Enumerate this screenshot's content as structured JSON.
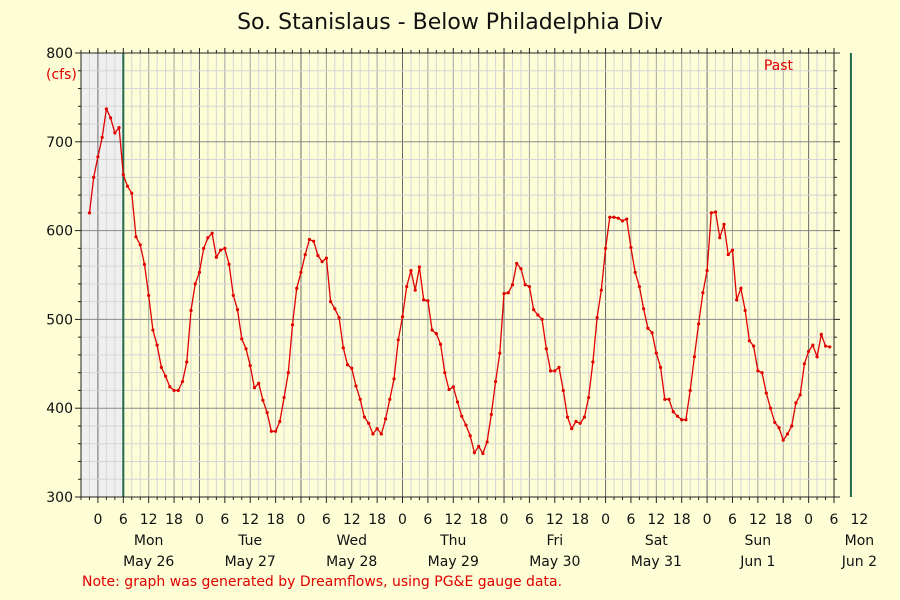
{
  "chart_data": {
    "type": "line",
    "title": "So. Stanislaus - Below Philadelphia Div",
    "ylabel": "(cfs)",
    "xlabel": "",
    "ylim": [
      300,
      800
    ],
    "yticks": [
      300,
      400,
      500,
      600,
      700,
      800
    ],
    "xlim_hours": [
      -4,
      174
    ],
    "hour_ticks": [
      {
        "h": 0,
        "label": "0"
      },
      {
        "h": 6,
        "label": "6"
      },
      {
        "h": 12,
        "label": "12"
      },
      {
        "h": 18,
        "label": "18"
      },
      {
        "h": 24,
        "label": "0"
      },
      {
        "h": 30,
        "label": "6"
      },
      {
        "h": 36,
        "label": "12"
      },
      {
        "h": 42,
        "label": "18"
      },
      {
        "h": 48,
        "label": "0"
      },
      {
        "h": 54,
        "label": "6"
      },
      {
        "h": 60,
        "label": "12"
      },
      {
        "h": 66,
        "label": "18"
      },
      {
        "h": 72,
        "label": "0"
      },
      {
        "h": 78,
        "label": "6"
      },
      {
        "h": 84,
        "label": "12"
      },
      {
        "h": 90,
        "label": "18"
      },
      {
        "h": 96,
        "label": "0"
      },
      {
        "h": 102,
        "label": "6"
      },
      {
        "h": 108,
        "label": "12"
      },
      {
        "h": 114,
        "label": "18"
      },
      {
        "h": 120,
        "label": "0"
      },
      {
        "h": 126,
        "label": "6"
      },
      {
        "h": 132,
        "label": "12"
      },
      {
        "h": 138,
        "label": "18"
      },
      {
        "h": 144,
        "label": "0"
      },
      {
        "h": 150,
        "label": "6"
      },
      {
        "h": 156,
        "label": "12"
      },
      {
        "h": 162,
        "label": "18"
      },
      {
        "h": 168,
        "label": "0"
      },
      {
        "h": 174,
        "label": "6"
      },
      {
        "h": 180,
        "label": "12"
      }
    ],
    "day_labels": [
      {
        "h": 12,
        "day": "Mon",
        "date": "May 26"
      },
      {
        "h": 36,
        "day": "Tue",
        "date": "May 27"
      },
      {
        "h": 60,
        "day": "Wed",
        "date": "May 28"
      },
      {
        "h": 84,
        "day": "Thu",
        "date": "May 29"
      },
      {
        "h": 108,
        "day": "Fri",
        "date": "May 30"
      },
      {
        "h": 132,
        "day": "Sat",
        "date": "May 31"
      },
      {
        "h": 156,
        "day": "Sun",
        "date": "Jun 1"
      },
      {
        "h": 180,
        "day": "Mon",
        "date": "Jun 2"
      }
    ],
    "period_start_hour": 6,
    "period_end_hour": 178,
    "annotation": "Past",
    "grid": true,
    "line_color": "#e00000",
    "series": [
      {
        "values": [
          [
            -2,
            620
          ],
          [
            -1,
            660
          ],
          [
            0,
            683
          ],
          [
            1,
            705
          ],
          [
            2,
            737
          ],
          [
            3,
            727
          ],
          [
            4,
            710
          ],
          [
            5,
            716
          ],
          [
            6,
            663
          ],
          [
            7,
            650
          ],
          [
            8,
            642
          ],
          [
            9,
            593
          ],
          [
            10,
            584
          ],
          [
            11,
            562
          ],
          [
            12,
            527
          ],
          [
            13,
            488
          ],
          [
            14,
            471
          ],
          [
            15,
            446
          ],
          [
            16,
            436
          ],
          [
            17,
            424
          ],
          [
            18,
            420
          ],
          [
            19,
            420
          ],
          [
            20,
            430
          ],
          [
            21,
            452
          ],
          [
            22,
            510
          ],
          [
            23,
            540
          ],
          [
            24,
            553
          ],
          [
            25,
            580
          ],
          [
            26,
            592
          ],
          [
            27,
            597
          ],
          [
            28,
            570
          ],
          [
            29,
            578
          ],
          [
            30,
            580
          ],
          [
            31,
            562
          ],
          [
            32,
            527
          ],
          [
            33,
            511
          ],
          [
            34,
            478
          ],
          [
            35,
            467
          ],
          [
            36,
            448
          ],
          [
            37,
            423
          ],
          [
            38,
            428
          ],
          [
            39,
            409
          ],
          [
            40,
            395
          ],
          [
            41,
            374
          ],
          [
            42,
            374
          ],
          [
            43,
            385
          ],
          [
            44,
            412
          ],
          [
            45,
            440
          ],
          [
            46,
            494
          ],
          [
            47,
            535
          ],
          [
            48,
            553
          ],
          [
            49,
            573
          ],
          [
            50,
            590
          ],
          [
            51,
            588
          ],
          [
            52,
            572
          ],
          [
            53,
            565
          ],
          [
            54,
            569
          ],
          [
            55,
            520
          ],
          [
            56,
            512
          ],
          [
            57,
            502
          ],
          [
            58,
            468
          ],
          [
            59,
            449
          ],
          [
            60,
            445
          ],
          [
            61,
            425
          ],
          [
            62,
            410
          ],
          [
            63,
            390
          ],
          [
            64,
            383
          ],
          [
            65,
            371
          ],
          [
            66,
            377
          ],
          [
            67,
            371
          ],
          [
            68,
            388
          ],
          [
            69,
            410
          ],
          [
            70,
            433
          ],
          [
            71,
            477
          ],
          [
            72,
            503
          ],
          [
            73,
            537
          ],
          [
            74,
            555
          ],
          [
            75,
            533
          ],
          [
            76,
            559
          ],
          [
            77,
            522
          ],
          [
            78,
            521
          ],
          [
            79,
            488
          ],
          [
            80,
            484
          ],
          [
            81,
            472
          ],
          [
            82,
            440
          ],
          [
            83,
            421
          ],
          [
            84,
            424
          ],
          [
            85,
            407
          ],
          [
            86,
            391
          ],
          [
            87,
            381
          ],
          [
            88,
            369
          ],
          [
            89,
            350
          ],
          [
            90,
            357
          ],
          [
            91,
            349
          ],
          [
            92,
            362
          ],
          [
            93,
            393
          ],
          [
            94,
            430
          ],
          [
            95,
            462
          ],
          [
            96,
            529
          ],
          [
            97,
            530
          ],
          [
            98,
            539
          ],
          [
            99,
            563
          ],
          [
            100,
            557
          ],
          [
            101,
            539
          ],
          [
            102,
            537
          ],
          [
            103,
            511
          ],
          [
            104,
            505
          ],
          [
            105,
            500
          ],
          [
            106,
            467
          ],
          [
            107,
            442
          ],
          [
            108,
            442
          ],
          [
            109,
            446
          ],
          [
            110,
            420
          ],
          [
            111,
            390
          ],
          [
            112,
            377
          ],
          [
            113,
            385
          ],
          [
            114,
            383
          ],
          [
            115,
            390
          ],
          [
            116,
            412
          ],
          [
            117,
            452
          ],
          [
            118,
            502
          ],
          [
            119,
            533
          ],
          [
            120,
            580
          ],
          [
            121,
            615
          ],
          [
            122,
            615
          ],
          [
            123,
            614
          ],
          [
            124,
            611
          ],
          [
            125,
            613
          ],
          [
            126,
            581
          ],
          [
            127,
            553
          ],
          [
            128,
            537
          ],
          [
            129,
            512
          ],
          [
            130,
            490
          ],
          [
            131,
            485
          ],
          [
            132,
            462
          ],
          [
            133,
            446
          ],
          [
            134,
            410
          ],
          [
            135,
            410
          ],
          [
            136,
            396
          ],
          [
            137,
            391
          ],
          [
            138,
            387
          ],
          [
            139,
            387
          ],
          [
            140,
            420
          ],
          [
            141,
            458
          ],
          [
            142,
            495
          ],
          [
            143,
            530
          ],
          [
            144,
            555
          ],
          [
            145,
            620
          ],
          [
            146,
            621
          ],
          [
            147,
            592
          ],
          [
            148,
            607
          ],
          [
            149,
            573
          ],
          [
            150,
            578
          ],
          [
            151,
            522
          ],
          [
            152,
            535
          ],
          [
            153,
            510
          ],
          [
            154,
            476
          ],
          [
            155,
            470
          ],
          [
            156,
            442
          ],
          [
            157,
            440
          ],
          [
            158,
            417
          ],
          [
            159,
            400
          ],
          [
            160,
            384
          ],
          [
            161,
            378
          ],
          [
            162,
            364
          ],
          [
            163,
            371
          ],
          [
            164,
            380
          ],
          [
            165,
            406
          ],
          [
            166,
            415
          ],
          [
            167,
            450
          ],
          [
            168,
            464
          ],
          [
            169,
            471
          ],
          [
            170,
            458
          ],
          [
            171,
            483
          ],
          [
            172,
            470
          ],
          [
            173,
            469
          ]
        ]
      }
    ]
  },
  "footnote": "Note: graph was generated by Dreamflows, using PG&E gauge data."
}
